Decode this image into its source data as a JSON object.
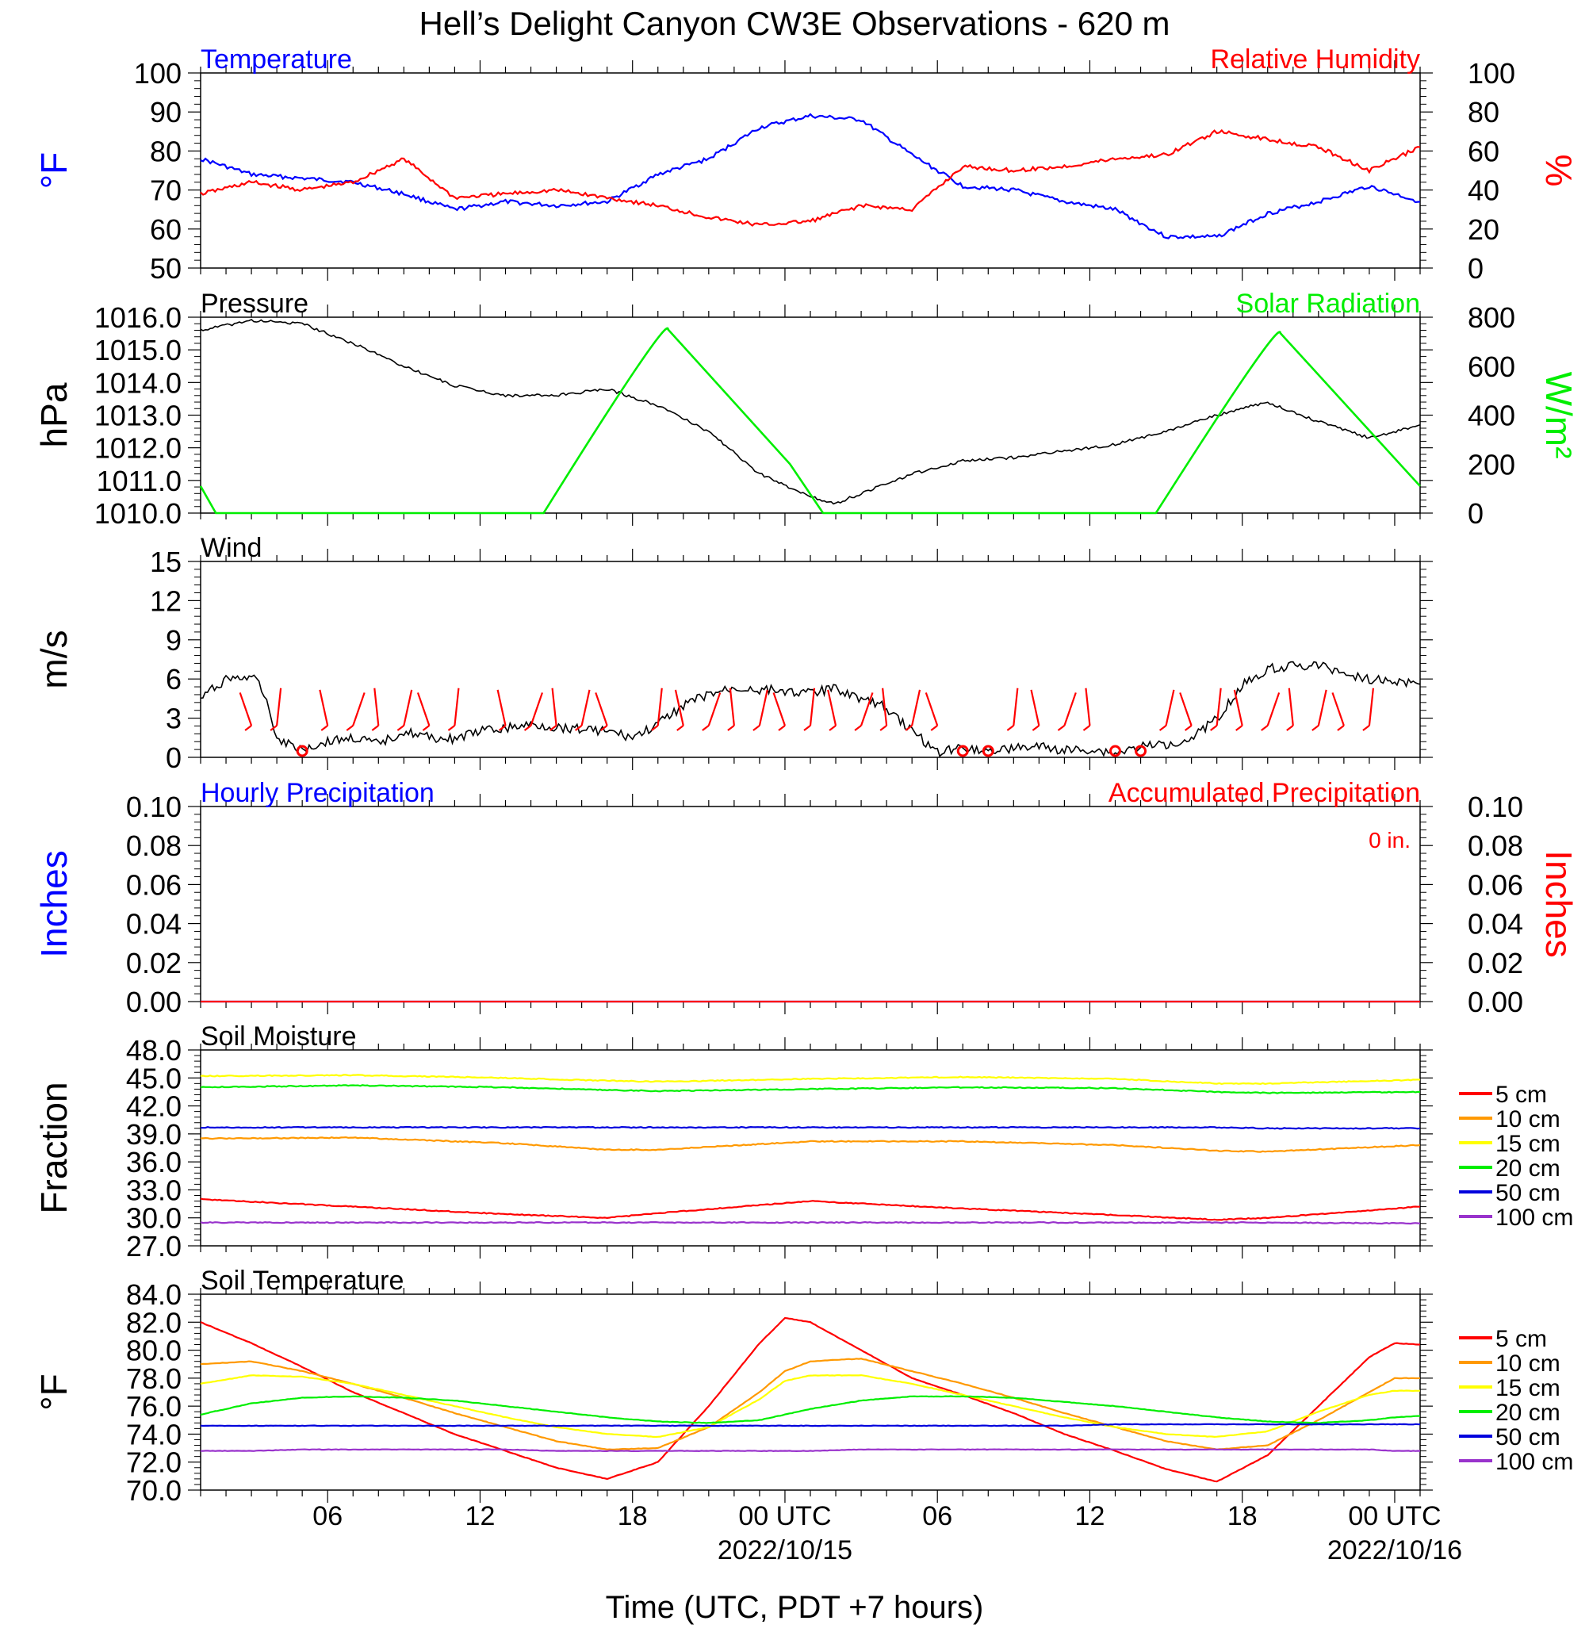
{
  "page_title": "Hell’s Delight Canyon CW3E Observations - 620 m",
  "x_axis": {
    "title": "Time (UTC, PDT +7 hours)",
    "ticks": [
      {
        "h": 6,
        "label": "06",
        "sub": ""
      },
      {
        "h": 12,
        "label": "12",
        "sub": ""
      },
      {
        "h": 18,
        "label": "18",
        "sub": ""
      },
      {
        "h": 24,
        "label": "00 UTC",
        "sub": "2022/10/15"
      },
      {
        "h": 30,
        "label": "06",
        "sub": ""
      },
      {
        "h": 36,
        "label": "12",
        "sub": ""
      },
      {
        "h": 42,
        "label": "18",
        "sub": ""
      },
      {
        "h": 48,
        "label": "00 UTC",
        "sub": "2022/10/16"
      }
    ]
  },
  "chart_data": [
    {
      "type": "line",
      "id": "temp_rh",
      "title_left": "Temperature",
      "title_right": "Relative Humidity",
      "ylabel_left": "°F",
      "ylabel_right": "%",
      "ylim_left": [
        50,
        100
      ],
      "ylim_right": [
        0,
        100
      ],
      "yticks_left": [
        "50",
        "60",
        "70",
        "80",
        "90",
        "100"
      ],
      "yticks_right": [
        "0",
        "20",
        "40",
        "60",
        "80",
        "100"
      ],
      "x_hours": [
        1,
        3,
        5,
        7,
        9,
        11,
        13,
        15,
        17,
        19,
        21,
        23,
        25,
        27,
        29,
        31,
        33,
        35,
        37,
        39,
        41,
        43,
        45,
        47,
        49
      ],
      "series": [
        {
          "color": "#0000ff",
          "axis": "left",
          "values": [
            78,
            74,
            73,
            72,
            69,
            65,
            67,
            66,
            67,
            74,
            78,
            86,
            89,
            88,
            79,
            71,
            70,
            67,
            65,
            58,
            58,
            64,
            67,
            71,
            67
          ]
        },
        {
          "color": "#ff0000",
          "axis": "right",
          "values": [
            38,
            44,
            40,
            44,
            56,
            36,
            38,
            40,
            36,
            32,
            26,
            22,
            24,
            32,
            30,
            52,
            50,
            52,
            56,
            58,
            70,
            66,
            62,
            50,
            62
          ]
        }
      ]
    },
    {
      "type": "line",
      "id": "pressure_solar",
      "title_left": "Pressure",
      "title_right": "Solar Radiation",
      "ylabel_left": "hPa",
      "ylabel_right": "W/m²",
      "ylim_left": [
        1010,
        1016
      ],
      "ylim_right": [
        0,
        800
      ],
      "yticks_left": [
        "1010.0",
        "1011.0",
        "1012.0",
        "1013.0",
        "1014.0",
        "1015.0",
        "1016.0"
      ],
      "yticks_right": [
        "0",
        "200",
        "400",
        "600",
        "800"
      ],
      "x_hours": [
        1,
        3,
        5,
        7,
        9,
        11,
        13,
        15,
        17,
        19,
        21,
        23,
        25,
        26,
        27,
        29,
        31,
        33,
        35,
        37,
        39,
        41,
        43,
        45,
        47,
        49
      ],
      "series": [
        {
          "color": "#000000",
          "axis": "left",
          "values": [
            1015.6,
            1015.9,
            1015.8,
            1015.2,
            1014.5,
            1013.9,
            1013.6,
            1013.6,
            1013.8,
            1013.3,
            1012.5,
            1011.2,
            1010.5,
            1010.3,
            1010.6,
            1011.2,
            1011.6,
            1011.7,
            1011.9,
            1012.1,
            1012.5,
            1013.0,
            1013.4,
            1012.8,
            1012.3,
            1012.7
          ]
        }
      ],
      "solar": {
        "color": "#00ee00",
        "axis": "right",
        "x_hours": [
          1,
          1.6,
          14.5,
          19.4,
          24.2,
          25.5,
          38.6,
          43.5,
          49
        ],
        "values": [
          110,
          0,
          0,
          750,
          200,
          0,
          0,
          735,
          110
        ]
      }
    },
    {
      "type": "line",
      "id": "wind",
      "title_left": "Wind",
      "ylabel_left": "m/s",
      "ylim_left": [
        0,
        15
      ],
      "yticks_left": [
        "0",
        "3",
        "6",
        "9",
        "12",
        "15"
      ],
      "x_hours": [
        1,
        2,
        3,
        3.5,
        4,
        5,
        6,
        7,
        8,
        9,
        10,
        11,
        12,
        13,
        14,
        15,
        16,
        17,
        18,
        19,
        20,
        21,
        22,
        23,
        24,
        25,
        26,
        27,
        28,
        29,
        30,
        31,
        32,
        33,
        34,
        35,
        36,
        37,
        38,
        39,
        40,
        41,
        42,
        43,
        44,
        45,
        46,
        47,
        48,
        49
      ],
      "series": [
        {
          "color": "#000000",
          "axis": "left",
          "values": [
            4.5,
            6.0,
            6.2,
            5.0,
            1.5,
            0.6,
            1.2,
            1.5,
            1.0,
            2.0,
            1.5,
            1.4,
            2.0,
            2.2,
            2.5,
            2.3,
            2.2,
            2.0,
            1.5,
            2.5,
            4.0,
            4.8,
            5.3,
            5.2,
            5.1,
            4.9,
            5.3,
            4.5,
            3.8,
            2.0,
            0.4,
            0.8,
            0.5,
            0.7,
            0.8,
            0.5,
            0.6,
            0.3,
            0.8,
            1.0,
            1.5,
            3.0,
            5.5,
            6.8,
            7.0,
            7.0,
            6.5,
            6.0,
            5.8,
            5.6
          ]
        }
      ],
      "barbs": {
        "color": "#ff0000",
        "calm_hours": [
          5,
          31,
          32,
          37,
          38
        ],
        "barb_hours": [
          3,
          4,
          6,
          7,
          8,
          9,
          10,
          11,
          13,
          14,
          15,
          16,
          17,
          19,
          20,
          21,
          22,
          23,
          24,
          25,
          26,
          27,
          28,
          29,
          30,
          33,
          34,
          35,
          36,
          39,
          40,
          41,
          42,
          43,
          44,
          45,
          46,
          47
        ]
      }
    },
    {
      "type": "line",
      "id": "precip",
      "title_left": "Hourly Precipitation",
      "title_right": "Accumulated Precipitation",
      "annotation": "0 in.",
      "ylabel_left": "Inches",
      "ylabel_right": "Inches",
      "ylim_left": [
        0,
        0.1
      ],
      "yticks_left": [
        "0.00",
        "0.02",
        "0.04",
        "0.06",
        "0.08",
        "0.10"
      ],
      "yticks_right": [
        "0.00",
        "0.02",
        "0.04",
        "0.06",
        "0.08",
        "0.10"
      ],
      "x_hours": [
        1,
        49
      ],
      "series": [
        {
          "color": "#0000ff",
          "axis": "left",
          "values": [
            0,
            0
          ]
        },
        {
          "color": "#ff0000",
          "axis": "left",
          "values": [
            0,
            0
          ]
        }
      ]
    },
    {
      "type": "line",
      "id": "soil_moisture",
      "title_left": "Soil Moisture",
      "ylabel_left": "Fraction",
      "ylim_left": [
        27,
        48
      ],
      "yticks_left": [
        "27.0",
        "30.0",
        "33.0",
        "36.0",
        "39.0",
        "42.0",
        "45.0",
        "48.0"
      ],
      "x_hours": [
        1,
        7,
        13,
        17,
        19,
        25,
        31,
        37,
        41,
        43,
        49
      ],
      "series": [
        {
          "name": "5 cm",
          "color": "#ff0000",
          "values": [
            32.0,
            31.2,
            30.4,
            30.0,
            30.5,
            31.8,
            31.0,
            30.3,
            29.8,
            30.0,
            31.2
          ]
        },
        {
          "name": "10 cm",
          "color": "#ff9900",
          "values": [
            38.5,
            38.6,
            38.0,
            37.3,
            37.3,
            38.2,
            38.2,
            37.8,
            37.2,
            37.1,
            37.8
          ]
        },
        {
          "name": "15 cm",
          "color": "#ffff00",
          "values": [
            45.2,
            45.3,
            45.0,
            44.7,
            44.6,
            44.9,
            45.1,
            44.9,
            44.4,
            44.4,
            44.8
          ]
        },
        {
          "name": "20 cm",
          "color": "#00ee00",
          "values": [
            44.0,
            44.2,
            44.0,
            43.7,
            43.6,
            43.8,
            44.0,
            43.9,
            43.5,
            43.4,
            43.5
          ]
        },
        {
          "name": "50 cm",
          "color": "#0000dd",
          "values": [
            39.7,
            39.7,
            39.7,
            39.7,
            39.7,
            39.7,
            39.7,
            39.7,
            39.7,
            39.6,
            39.6
          ]
        },
        {
          "name": "100 cm",
          "color": "#9933cc",
          "values": [
            29.5,
            29.5,
            29.5,
            29.5,
            29.5,
            29.5,
            29.5,
            29.5,
            29.5,
            29.5,
            29.4
          ]
        }
      ]
    },
    {
      "type": "line",
      "id": "soil_temp",
      "title_left": "Soil Temperature",
      "ylabel_left": "°F",
      "ylim_left": [
        70,
        84
      ],
      "yticks_left": [
        "70.0",
        "72.0",
        "74.0",
        "76.0",
        "78.0",
        "80.0",
        "82.0",
        "84.0"
      ],
      "x_hours": [
        1,
        3,
        5,
        7,
        9,
        11,
        13,
        15,
        17,
        19,
        21,
        23,
        24,
        25,
        27,
        29,
        31,
        33,
        35,
        37,
        39,
        41,
        43,
        45,
        47,
        48,
        49
      ],
      "series": [
        {
          "name": "5 cm",
          "color": "#ff0000",
          "values": [
            82.0,
            80.5,
            78.8,
            77.0,
            75.5,
            74.0,
            72.8,
            71.6,
            70.8,
            72.0,
            76.0,
            80.5,
            82.3,
            82.0,
            80.0,
            78.0,
            76.8,
            75.5,
            74.0,
            72.8,
            71.5,
            70.6,
            72.5,
            76.0,
            79.5,
            80.5,
            80.4
          ]
        },
        {
          "name": "10 cm",
          "color": "#ff9900",
          "values": [
            79.0,
            79.2,
            78.5,
            77.6,
            76.6,
            75.5,
            74.5,
            73.5,
            72.9,
            73.0,
            74.5,
            77.0,
            78.5,
            79.2,
            79.4,
            78.5,
            77.6,
            76.6,
            75.5,
            74.5,
            73.5,
            72.9,
            73.2,
            75.0,
            77.0,
            78.0,
            78.0
          ]
        },
        {
          "name": "15 cm",
          "color": "#ffff00",
          "values": [
            77.6,
            78.2,
            78.1,
            77.6,
            76.8,
            76.0,
            75.2,
            74.5,
            74.0,
            73.8,
            74.5,
            76.5,
            77.8,
            78.2,
            78.2,
            77.6,
            76.8,
            76.0,
            75.2,
            74.5,
            74.0,
            73.8,
            74.2,
            75.6,
            76.8,
            77.1,
            77.1
          ]
        },
        {
          "name": "20 cm",
          "color": "#00ee00",
          "values": [
            75.4,
            76.2,
            76.6,
            76.7,
            76.6,
            76.4,
            76.0,
            75.6,
            75.2,
            74.9,
            74.8,
            75.0,
            75.4,
            75.8,
            76.4,
            76.7,
            76.7,
            76.6,
            76.3,
            76.0,
            75.6,
            75.2,
            74.9,
            74.8,
            75.0,
            75.2,
            75.3
          ]
        },
        {
          "name": "50 cm",
          "color": "#0000dd",
          "values": [
            74.6,
            74.6,
            74.6,
            74.6,
            74.6,
            74.6,
            74.6,
            74.6,
            74.6,
            74.6,
            74.6,
            74.6,
            74.6,
            74.6,
            74.6,
            74.6,
            74.6,
            74.6,
            74.6,
            74.7,
            74.7,
            74.7,
            74.7,
            74.7,
            74.7,
            74.7,
            74.7
          ]
        },
        {
          "name": "100 cm",
          "color": "#9933cc",
          "values": [
            72.8,
            72.8,
            72.9,
            72.9,
            72.9,
            72.9,
            72.9,
            72.8,
            72.8,
            72.8,
            72.8,
            72.8,
            72.8,
            72.8,
            72.9,
            72.9,
            72.9,
            72.9,
            72.9,
            72.9,
            72.9,
            72.9,
            72.9,
            72.9,
            72.9,
            72.8,
            72.8
          ]
        }
      ]
    }
  ]
}
